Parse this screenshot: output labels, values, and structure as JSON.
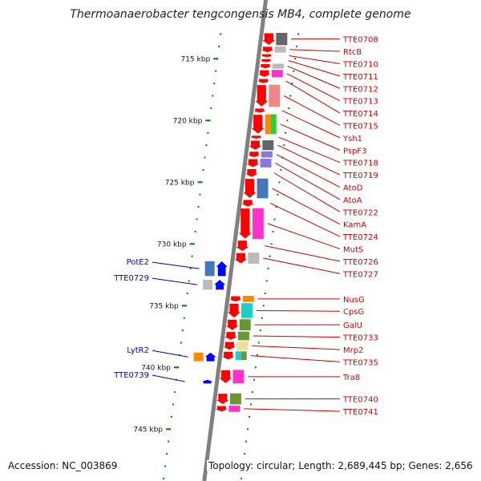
{
  "title": "Thermoanaerobacter tengcongensis MB4, complete genome",
  "footer": {
    "accession": "Accession: NC_003869",
    "topology": "Topology: circular; Length: 2,689,445 bp; Genes: 2,656"
  },
  "colors": {
    "backbone": "#808080",
    "forward_gene": "#ff0000",
    "reverse_gene": "#0000ff",
    "tick": "#008000",
    "forward_label": "#cc0000",
    "reverse_label": "#0000cc"
  },
  "ruler": [
    {
      "kbp": 715,
      "label": "715 kbp"
    },
    {
      "kbp": 720,
      "label": "720 kbp"
    },
    {
      "kbp": 725,
      "label": "725 kbp"
    },
    {
      "kbp": 730,
      "label": "730 kbp"
    },
    {
      "kbp": 735,
      "label": "735 kbp"
    },
    {
      "kbp": 740,
      "label": "740 kbp"
    },
    {
      "kbp": 745,
      "label": "745 kbp"
    }
  ],
  "forward_genes": [
    {
      "name": "TTE0708",
      "start_kbp": 712.9,
      "end_kbp": 713.9,
      "cog_color": "#666666"
    },
    {
      "name": "RtcB",
      "start_kbp": 714.0,
      "end_kbp": 714.5,
      "cog_color": "#bbbbbb"
    },
    {
      "name": "TTE0710",
      "start_kbp": 714.6,
      "end_kbp": 714.9,
      "cog_color": ""
    },
    {
      "name": "TTE0711",
      "start_kbp": 715.0,
      "end_kbp": 715.3,
      "cog_color": ""
    },
    {
      "name": "TTE0712",
      "start_kbp": 715.4,
      "end_kbp": 715.8,
      "cog_color": "#bbbbbb"
    },
    {
      "name": "TTE0713",
      "start_kbp": 715.9,
      "end_kbp": 716.5,
      "cog_color": "#ff33cc"
    },
    {
      "name": "TTE0714",
      "start_kbp": 716.6,
      "end_kbp": 717.0,
      "cog_color": ""
    },
    {
      "name": "TTE0715",
      "start_kbp": 717.1,
      "end_kbp": 718.9,
      "cog_color": "#ee8888"
    },
    {
      "name": "Ysh1",
      "start_kbp": 719.0,
      "end_kbp": 719.4,
      "cog_color": ""
    },
    {
      "name": "PspF3",
      "start_kbp": 719.5,
      "end_kbp": 721.1,
      "cog_color": "#ff8800|#33cc33"
    },
    {
      "name": "TTE0718",
      "start_kbp": 721.2,
      "end_kbp": 721.5,
      "cog_color": ""
    },
    {
      "name": "TTE0719",
      "start_kbp": 721.6,
      "end_kbp": 722.4,
      "cog_color": "#666666"
    },
    {
      "name": "AtoD",
      "start_kbp": 722.5,
      "end_kbp": 723.0,
      "cog_color": "#8877dd"
    },
    {
      "name": "AtoA",
      "start_kbp": 723.1,
      "end_kbp": 723.8,
      "cog_color": "#8877dd"
    },
    {
      "name": "TTE0722",
      "start_kbp": 723.9,
      "end_kbp": 724.6,
      "cog_color": ""
    },
    {
      "name": "KamA",
      "start_kbp": 724.7,
      "end_kbp": 726.3,
      "cog_color": "#4477bb"
    },
    {
      "name": "TTE0724",
      "start_kbp": 726.4,
      "end_kbp": 727.0,
      "cog_color": ""
    },
    {
      "name": "MutS",
      "start_kbp": 727.1,
      "end_kbp": 729.6,
      "cog_color": "#ff33cc"
    },
    {
      "name": "TTE0726",
      "start_kbp": 729.7,
      "end_kbp": 730.6,
      "cog_color": ""
    },
    {
      "name": "TTE0727",
      "start_kbp": 730.7,
      "end_kbp": 731.6,
      "cog_color": "#bbbbbb"
    },
    {
      "name": "NusG",
      "start_kbp": 734.2,
      "end_kbp": 734.7,
      "cog_color": "#ff8800"
    },
    {
      "name": "CpsG",
      "start_kbp": 734.8,
      "end_kbp": 736.0,
      "cog_color": "#22cccc"
    },
    {
      "name": "GalU",
      "start_kbp": 736.1,
      "end_kbp": 737.0,
      "cog_color": "#669933"
    },
    {
      "name": "TTE0733",
      "start_kbp": 737.1,
      "end_kbp": 737.8,
      "cog_color": "#669933"
    },
    {
      "name": "Mrp2",
      "start_kbp": 737.9,
      "end_kbp": 738.6,
      "cog_color": "#eedd99"
    },
    {
      "name": "TTE0735",
      "start_kbp": 738.7,
      "end_kbp": 739.4,
      "cog_color": "#22cccc|#669933"
    },
    {
      "name": "Tra8",
      "start_kbp": 740.2,
      "end_kbp": 741.3,
      "cog_color": "#ff33cc"
    },
    {
      "name": "TTE0740",
      "start_kbp": 742.1,
      "end_kbp": 743.0,
      "cog_color": "#669933"
    },
    {
      "name": "TTE0741",
      "start_kbp": 743.1,
      "end_kbp": 743.6,
      "cog_color": "#ff33cc"
    }
  ],
  "reverse_genes": [
    {
      "name": "PotE2",
      "start_kbp": 731.4,
      "end_kbp": 732.6,
      "cog_color": "#4477bb"
    },
    {
      "name": "TTE0729",
      "start_kbp": 732.9,
      "end_kbp": 733.7,
      "cog_color": "#bbbbbb"
    },
    {
      "name": "LytR2",
      "start_kbp": 738.8,
      "end_kbp": 739.5,
      "cog_color": "#ff8800"
    },
    {
      "name": "TTE0739",
      "start_kbp": 741.0,
      "end_kbp": 741.3,
      "cog_color": ""
    }
  ]
}
